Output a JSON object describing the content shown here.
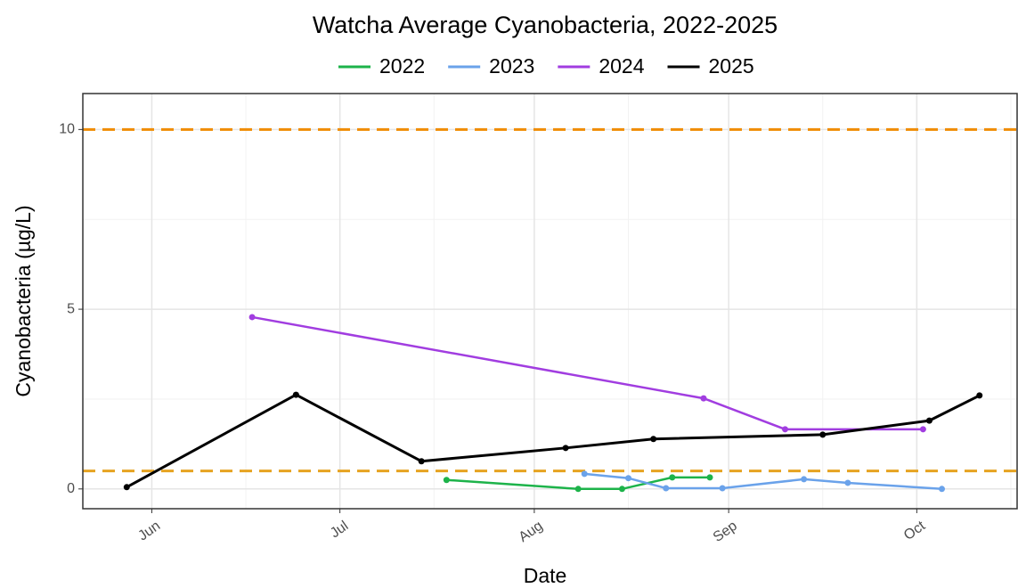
{
  "chart_data": {
    "type": "line",
    "title": "Watcha Average Cyanobacteria, 2022-2025",
    "xlabel": "Date",
    "ylabel": "Cyanobacteria (µg/L)",
    "xlim": [
      141,
      290
    ],
    "ylim": [
      -0.55,
      11
    ],
    "xticks": [
      {
        "value": 152,
        "label": "Jun"
      },
      {
        "value": 182,
        "label": "Jul"
      },
      {
        "value": 213,
        "label": "Aug"
      },
      {
        "value": 244,
        "label": "Sep"
      },
      {
        "value": 274,
        "label": "Oct"
      }
    ],
    "yticks": [
      0,
      5,
      10
    ],
    "x_minor_ticks": [
      167,
      197,
      228,
      259,
      289
    ],
    "y_minor_ticks": [
      2.5,
      7.5
    ],
    "grid": true,
    "legend": "top",
    "hlines": [
      {
        "value": 10,
        "color": "#f08c00"
      },
      {
        "value": 0.5,
        "color": "#e6a321"
      }
    ],
    "series": [
      {
        "name": "2022",
        "color": "#1db34a",
        "x": [
          199,
          220,
          227,
          235,
          241
        ],
        "values": [
          0.25,
          0,
          0,
          0.32,
          0.32
        ]
      },
      {
        "name": "2023",
        "color": "#6aa2ea",
        "x": [
          221,
          228,
          234,
          243,
          256,
          263,
          278
        ],
        "values": [
          0.42,
          0.3,
          0.02,
          0.02,
          0.27,
          0.17,
          0
        ]
      },
      {
        "name": "2024",
        "color": "#a13de0",
        "x": [
          168,
          240,
          253,
          275
        ],
        "values": [
          4.78,
          2.52,
          1.66,
          1.66
        ]
      },
      {
        "name": "2025",
        "color": "#000000",
        "x": [
          148,
          175,
          195,
          218,
          232,
          259,
          276,
          284
        ],
        "values": [
          0.05,
          2.62,
          0.77,
          1.14,
          1.39,
          1.51,
          1.9,
          2.6
        ]
      }
    ]
  }
}
